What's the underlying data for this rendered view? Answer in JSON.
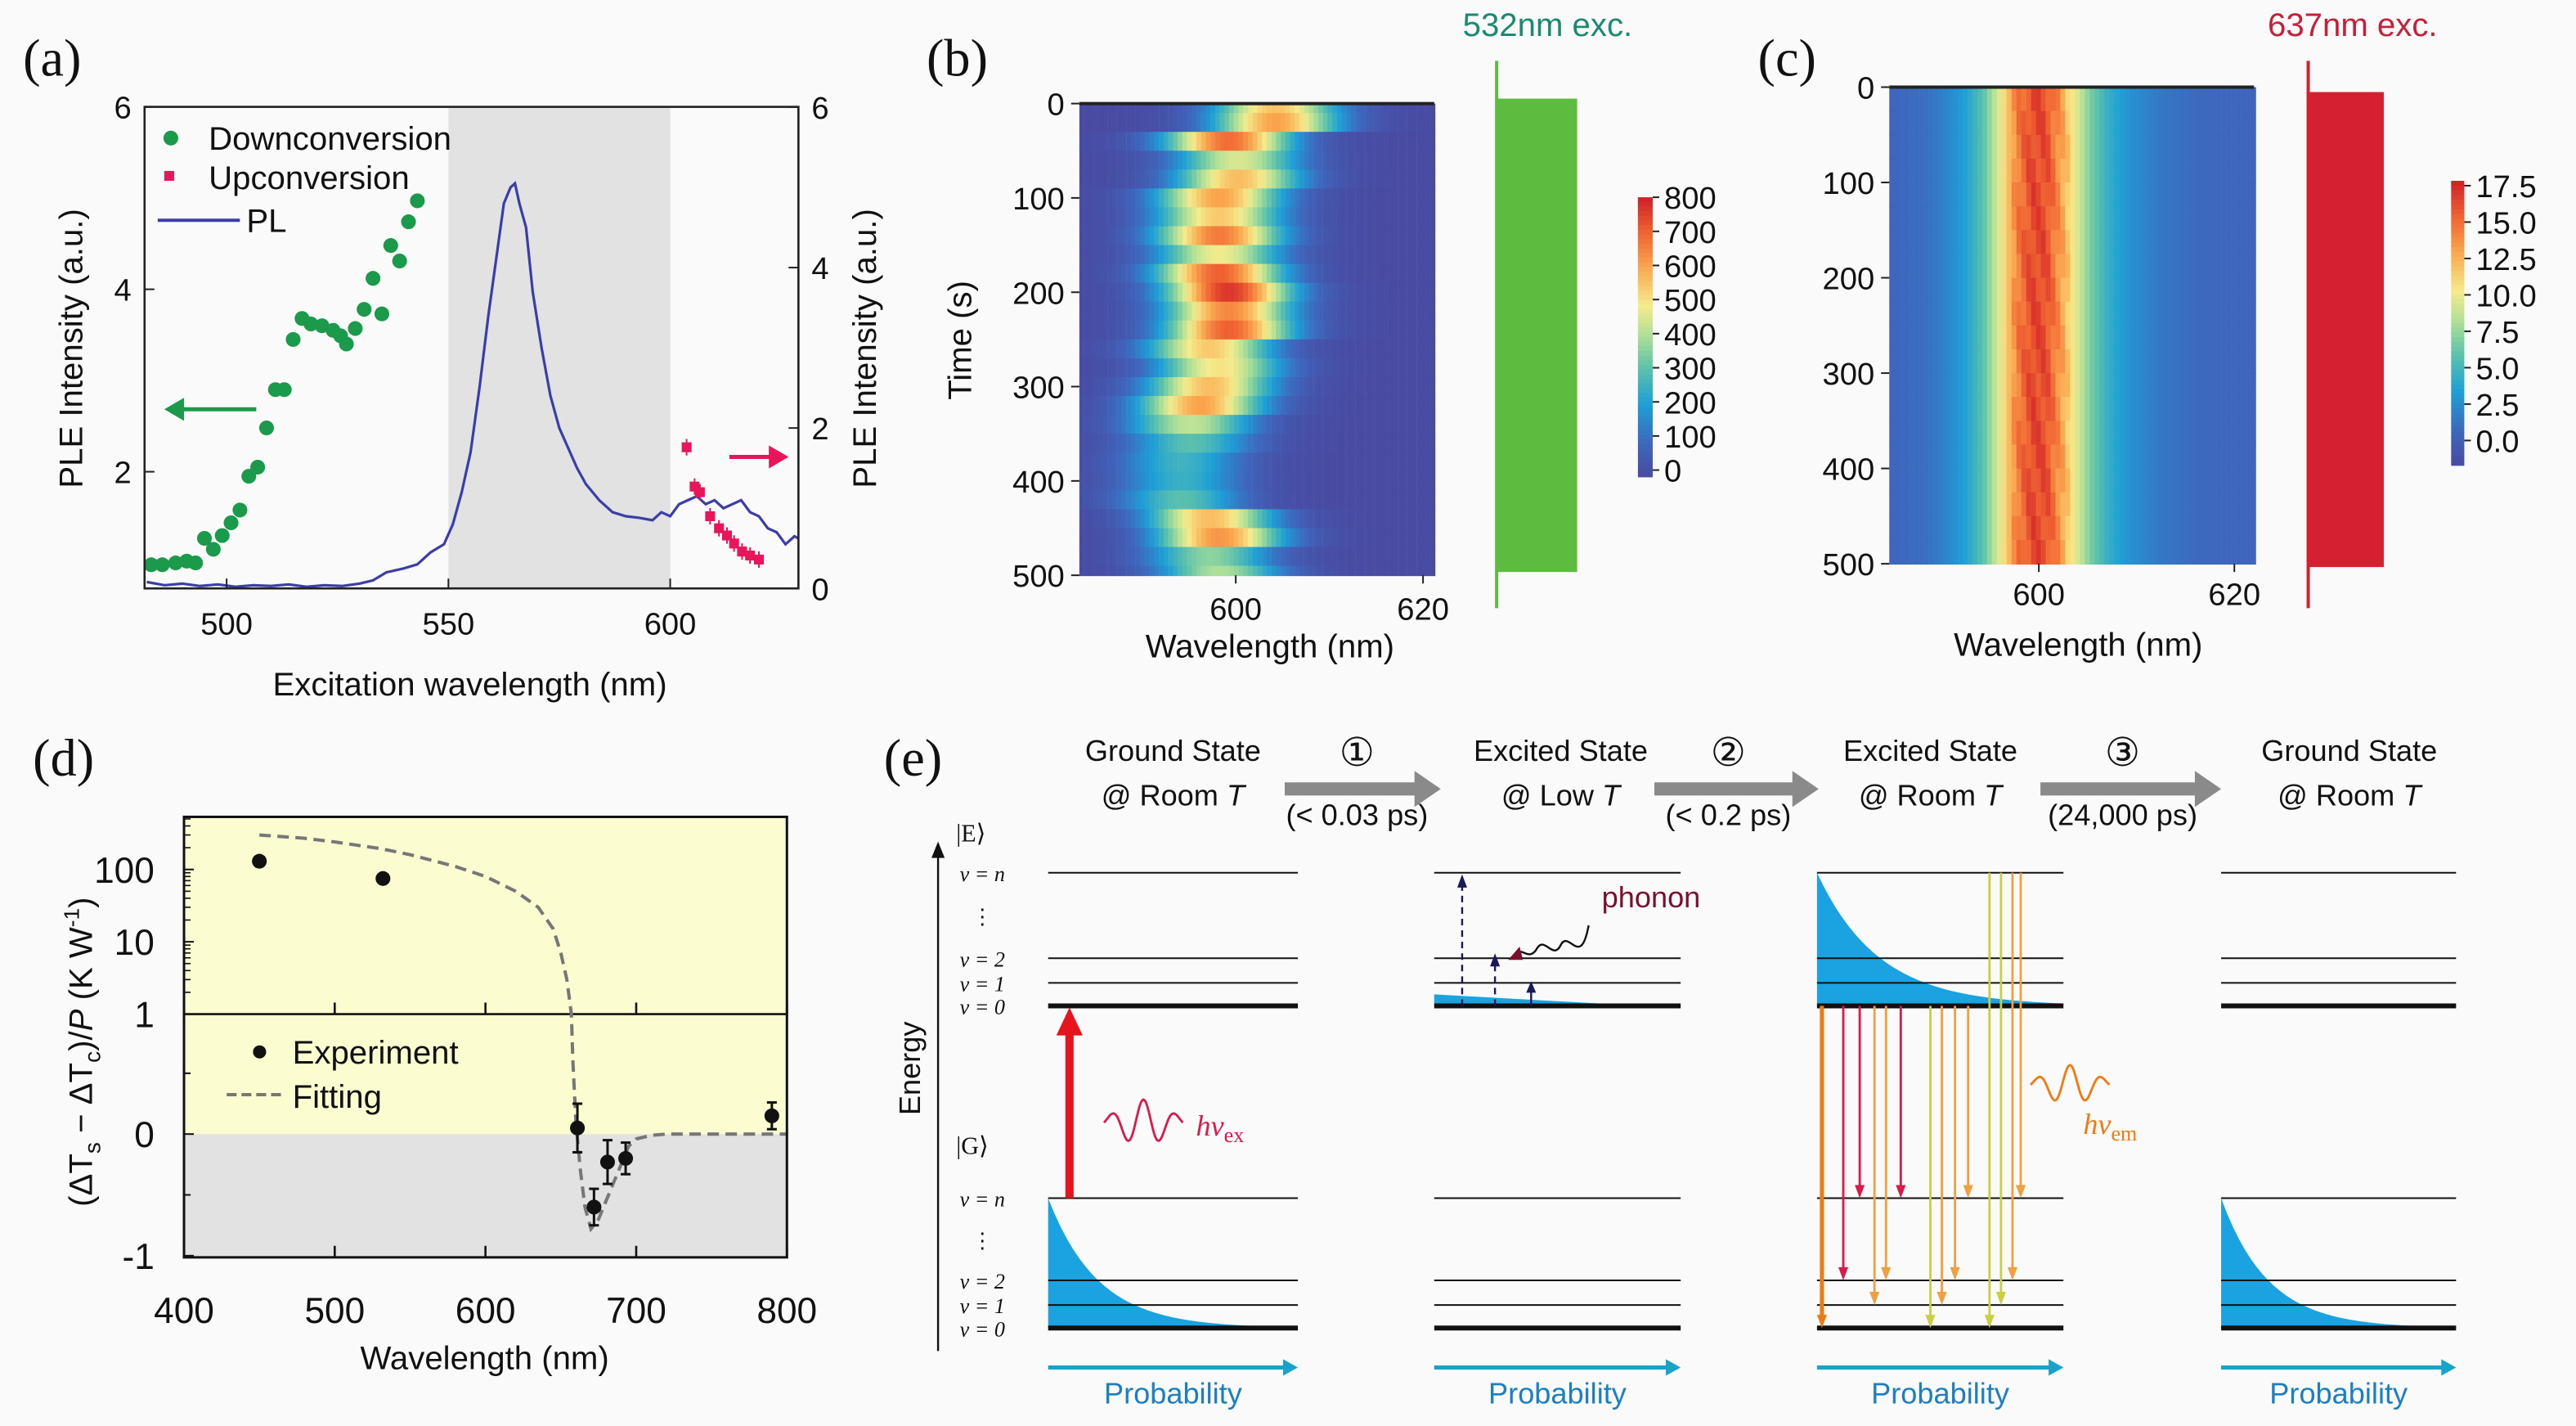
{
  "chart_data": [
    {
      "panel": "(a)",
      "type": "scatter+line",
      "xlabel": "Excitation wavelength (nm)",
      "ylabel_left": "PLE Intensity (a.u.)",
      "ylabel_right": "PLE Intensity (a.u.)",
      "xlim": [
        481.5,
        629
      ],
      "ylim_left": [
        0.85,
        6
      ],
      "ylim_right": [
        0,
        6
      ],
      "x_ticks": [
        "500",
        "550",
        "600"
      ],
      "y_ticks_left": [
        "2",
        "4",
        "6"
      ],
      "y_ticks_right": [
        "0",
        "2",
        "4",
        "6"
      ],
      "shaded_region_nm": [
        550,
        601
      ],
      "legend_position": "top-left",
      "series": [
        {
          "name": "Downconversion",
          "axis": "left",
          "color": "#1a9a4a",
          "marker": "circle",
          "points": [
            [
              483,
              0.98
            ],
            [
              485.5,
              0.98
            ],
            [
              488.5,
              1.0
            ],
            [
              491,
              1.02
            ],
            [
              493,
              1.0
            ],
            [
              495,
              1.27
            ],
            [
              497,
              1.15
            ],
            [
              499,
              1.3
            ],
            [
              501,
              1.44
            ],
            [
              503,
              1.58
            ],
            [
              505,
              1.95
            ],
            [
              507,
              2.05
            ],
            [
              509,
              2.48
            ],
            [
              511,
              2.9
            ],
            [
              513,
              2.9
            ],
            [
              515,
              3.45
            ],
            [
              517,
              3.68
            ],
            [
              519,
              3.62
            ],
            [
              521.5,
              3.6
            ],
            [
              524,
              3.55
            ],
            [
              525.7,
              3.49
            ],
            [
              527,
              3.4
            ],
            [
              529,
              3.57
            ],
            [
              531,
              3.78
            ],
            [
              533,
              4.12
            ],
            [
              535,
              3.73
            ],
            [
              537,
              4.48
            ],
            [
              539,
              4.31
            ],
            [
              541,
              4.74
            ],
            [
              543,
              4.97
            ]
          ]
        },
        {
          "name": "Upconversion",
          "axis": "right",
          "color": "#e8155a",
          "marker": "square",
          "points": [
            [
              603.7,
              1.76
            ],
            [
              605.5,
              1.27
            ],
            [
              606.7,
              1.2
            ],
            [
              609,
              0.9
            ],
            [
              611,
              0.75
            ],
            [
              612.8,
              0.66
            ],
            [
              614.4,
              0.56
            ],
            [
              616.2,
              0.46
            ],
            [
              618,
              0.41
            ],
            [
              620,
              0.36
            ]
          ]
        },
        {
          "name": "PL",
          "axis": "right",
          "color": "#3b3ea8",
          "marker": "line",
          "points": [
            [
              482,
              0.08
            ],
            [
              486,
              0.04
            ],
            [
              490,
              0.06
            ],
            [
              494,
              0.03
            ],
            [
              498,
              0.05
            ],
            [
              502,
              0.02
            ],
            [
              506,
              0.04
            ],
            [
              510,
              0.03
            ],
            [
              514,
              0.05
            ],
            [
              518,
              0.02
            ],
            [
              522,
              0.04
            ],
            [
              526,
              0.03
            ],
            [
              530,
              0.06
            ],
            [
              533,
              0.1
            ],
            [
              536,
              0.2
            ],
            [
              540,
              0.25
            ],
            [
              543,
              0.3
            ],
            [
              546,
              0.45
            ],
            [
              549,
              0.55
            ],
            [
              551,
              0.8
            ],
            [
              553,
              1.2
            ],
            [
              555,
              1.7
            ],
            [
              557,
              2.5
            ],
            [
              559,
              3.4
            ],
            [
              561,
              4.2
            ],
            [
              562.5,
              4.8
            ],
            [
              564,
              5.0
            ],
            [
              565,
              5.05
            ],
            [
              566,
              4.8
            ],
            [
              567.5,
              4.5
            ],
            [
              569,
              3.7
            ],
            [
              571,
              3.0
            ],
            [
              573,
              2.4
            ],
            [
              575,
              2.0
            ],
            [
              577,
              1.75
            ],
            [
              579,
              1.5
            ],
            [
              581,
              1.3
            ],
            [
              584,
              1.1
            ],
            [
              587,
              0.95
            ],
            [
              590,
              0.9
            ],
            [
              593,
              0.88
            ],
            [
              596,
              0.85
            ],
            [
              598,
              0.95
            ],
            [
              600,
              0.9
            ],
            [
              602,
              1.05
            ],
            [
              604,
              1.1
            ],
            [
              606,
              1.15
            ],
            [
              608,
              1.05
            ],
            [
              610,
              1.1
            ],
            [
              612,
              1.0
            ],
            [
              614,
              1.05
            ],
            [
              616,
              1.1
            ],
            [
              618,
              0.95
            ],
            [
              620,
              0.9
            ],
            [
              622,
              0.75
            ],
            [
              624,
              0.7
            ],
            [
              626,
              0.55
            ],
            [
              628,
              0.65
            ],
            [
              629,
              0.62
            ]
          ]
        }
      ]
    },
    {
      "panel": "(b)",
      "type": "heatmap",
      "annotation": "532nm exc.",
      "annotation_color": "#1a8a70",
      "excitation_bar_color": "#5dbb3f",
      "xlabel": "Wavelength (nm)",
      "ylabel": "Time (s)",
      "xlim": [
        583.3,
        621.2
      ],
      "ylim": [
        500,
        0
      ],
      "x_ticks": [
        "600",
        "620"
      ],
      "y_ticks": [
        "0",
        "100",
        "200",
        "300",
        "400",
        "500"
      ],
      "colorbar_ticks": [
        "0",
        "100",
        "200",
        "300",
        "400",
        "500",
        "600",
        "700",
        "800"
      ],
      "colorbar_range": [
        0,
        800
      ],
      "fwhm_nm": 11,
      "rows": [
        {
          "time": 0,
          "peak_nm": 604,
          "peak": 550
        },
        {
          "time": 20,
          "peak_nm": 604,
          "peak": 600
        },
        {
          "time": 40,
          "peak_nm": 599,
          "peak": 680
        },
        {
          "time": 60,
          "peak_nm": 600,
          "peak": 450
        },
        {
          "time": 80,
          "peak_nm": 600,
          "peak": 560
        },
        {
          "time": 100,
          "peak_nm": 598,
          "peak": 600
        },
        {
          "time": 120,
          "peak_nm": 598,
          "peak": 540
        },
        {
          "time": 140,
          "peak_nm": 598,
          "peak": 660
        },
        {
          "time": 160,
          "peak_nm": 598,
          "peak": 480
        },
        {
          "time": 180,
          "peak_nm": 598,
          "peak": 700
        },
        {
          "time": 200,
          "peak_nm": 599,
          "peak": 760
        },
        {
          "time": 220,
          "peak_nm": 599,
          "peak": 640
        },
        {
          "time": 240,
          "peak_nm": 599,
          "peak": 700
        },
        {
          "time": 260,
          "peak_nm": 597,
          "peak": 540
        },
        {
          "time": 280,
          "peak_nm": 598,
          "peak": 500
        },
        {
          "time": 300,
          "peak_nm": 597,
          "peak": 560
        },
        {
          "time": 320,
          "peak_nm": 596,
          "peak": 600
        },
        {
          "time": 340,
          "peak_nm": 595,
          "peak": 420
        },
        {
          "time": 360,
          "peak_nm": 595,
          "peak": 300
        },
        {
          "time": 380,
          "peak_nm": 594,
          "peak": 260
        },
        {
          "time": 400,
          "peak_nm": 594,
          "peak": 250
        },
        {
          "time": 420,
          "peak_nm": 594,
          "peak": 300
        },
        {
          "time": 440,
          "peak_nm": 597,
          "peak": 560
        },
        {
          "time": 460,
          "peak_nm": 598,
          "peak": 620
        },
        {
          "time": 480,
          "peak_nm": 597,
          "peak": 360
        },
        {
          "time": 500,
          "peak_nm": 598,
          "peak": 400
        }
      ]
    },
    {
      "panel": "(c)",
      "type": "heatmap",
      "annotation": "637nm exc.",
      "annotation_color": "#c4203a",
      "excitation_bar_color": "#d4202f",
      "xlabel": "Wavelength (nm)",
      "ylabel": "",
      "xlim": [
        584.7,
        622
      ],
      "ylim": [
        500,
        0
      ],
      "x_ticks": [
        "600",
        "620"
      ],
      "y_ticks": [
        "0",
        "100",
        "200",
        "300",
        "400",
        "500"
      ],
      "colorbar_ticks": [
        "0.0",
        "2.5",
        "5.0",
        "7.5",
        "10.0",
        "12.5",
        "15.0",
        "17.5"
      ],
      "colorbar_range": [
        -1.5,
        17.8
      ],
      "spectrum_constant_in_time": [
        [
          584.7,
          0.8
        ],
        [
          588,
          1.2
        ],
        [
          590,
          2.2
        ],
        [
          592,
          3.6
        ],
        [
          594,
          6
        ],
        [
          596,
          10.5
        ],
        [
          597.5,
          14.5
        ],
        [
          599,
          16.5
        ],
        [
          600.5,
          16.3
        ],
        [
          602,
          13.5
        ],
        [
          603.5,
          10
        ],
        [
          605,
          7
        ],
        [
          607,
          4.5
        ],
        [
          609,
          3
        ],
        [
          612,
          1.8
        ],
        [
          616,
          1
        ],
        [
          622,
          0.7
        ]
      ]
    },
    {
      "panel": "(d)",
      "type": "scatter+line",
      "xlabel": "Wavelength (nm)",
      "ylabel_parts": [
        "(ΔT",
        "s",
        " − ΔT",
        "c",
        ")/",
        "P",
        " (K W",
        "-1",
        ")"
      ],
      "xlim": [
        400,
        800
      ],
      "x_ticks": [
        "400",
        "500",
        "600",
        "700",
        "800"
      ],
      "y_scale": "log above 1, linear below 1 (broken axis)",
      "y_ticks": [
        "100",
        "10",
        "1",
        "0",
        "-1"
      ],
      "ylim_upper_log": [
        1,
        540
      ],
      "ylim_lower_linear": [
        -1,
        1
      ],
      "background": {
        "positive": "#fbfcd0",
        "negative": "#e2e2e2"
      },
      "legend_position": "center-left",
      "series": [
        {
          "name": "Experiment",
          "marker": "circle",
          "color": "#111111",
          "points": [
            [
              450,
              130
            ],
            [
              532,
              75
            ],
            [
              661,
              0.05
            ],
            [
              672,
              -0.6
            ],
            [
              681,
              -0.23
            ],
            [
              693,
              -0.2
            ],
            [
              790,
              0.15
            ]
          ],
          "error": [
            null,
            null,
            0.2,
            0.15,
            0.18,
            0.13,
            0.11
          ]
        },
        {
          "name": "Fitting",
          "marker": "dashed-line",
          "color": "#777777",
          "points": [
            [
              450,
              300
            ],
            [
              480,
              270
            ],
            [
              500,
              240
            ],
            [
              530,
              195
            ],
            [
              550,
              160
            ],
            [
              580,
              110
            ],
            [
              600,
              80
            ],
            [
              620,
              50
            ],
            [
              635,
              30
            ],
            [
              645,
              15
            ],
            [
              650,
              7
            ],
            [
              654,
              3
            ],
            [
              657,
              1
            ],
            [
              658,
              0.6
            ],
            [
              660,
              0.1
            ],
            [
              663,
              -0.3
            ],
            [
              666,
              -0.6
            ],
            [
              670,
              -0.78
            ],
            [
              675,
              -0.7
            ],
            [
              680,
              -0.55
            ],
            [
              685,
              -0.4
            ],
            [
              690,
              -0.25
            ],
            [
              695,
              -0.1
            ],
            [
              700,
              -0.04
            ],
            [
              710,
              -0.01
            ],
            [
              720,
              0
            ],
            [
              800,
              0
            ]
          ]
        }
      ]
    }
  ],
  "panel_labels": {
    "a": "(a)",
    "b": "(b)",
    "c": "(c)",
    "d": "(d)",
    "e": "(e)"
  },
  "diagram_e": {
    "states": [
      {
        "line1": "Ground State",
        "line2": "@ Room ",
        "temp": "T"
      },
      {
        "line1": "Excited State",
        "line2": "@ Low ",
        "temp": "T"
      },
      {
        "line1": "Excited State",
        "line2": "@ Room ",
        "temp": "T"
      },
      {
        "line1": "Ground State",
        "line2": "@ Room ",
        "temp": "T"
      }
    ],
    "steps": [
      {
        "num": "①",
        "time": "(< 0.03 ps)"
      },
      {
        "num": "②",
        "time": "(< 0.2 ps)"
      },
      {
        "num": "③",
        "time": "(24,000 ps)"
      }
    ],
    "axis_label": "Energy",
    "excited_label": "|E⟩",
    "ground_label": "|G⟩",
    "level_labels": [
      "v = n",
      "⋮",
      "v = 2",
      "v = 1",
      "v = 0"
    ],
    "phonon_label": "phonon",
    "hv_ex": {
      "base": "hν",
      "sub": "ex"
    },
    "hv_em": {
      "base": "hν",
      "sub": "em"
    },
    "probability_label": "Probability",
    "colors": {
      "distribution": "#1aa3e0",
      "probability": "#1b7fc0",
      "excitation": "#e8141c",
      "phonon": "#7a1030",
      "emission": [
        "#f07a10",
        "#d81b4a",
        "#f0a040",
        "#c8d040"
      ]
    }
  }
}
